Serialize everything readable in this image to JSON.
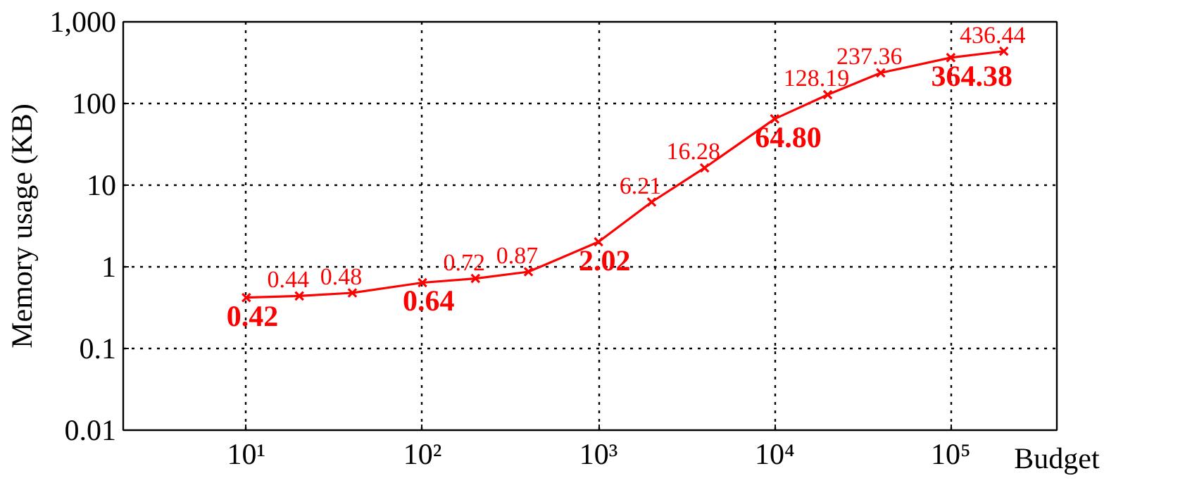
{
  "chart_data": {
    "type": "line",
    "xlabel": "Budget",
    "ylabel": "Memory usage (KB)",
    "log": "xy",
    "grid": true,
    "marker": "cross",
    "line_style": "solid",
    "xlim": [
      2,
      400000
    ],
    "ylim": [
      0.01,
      1000
    ],
    "xticks": [
      {
        "value": 10,
        "label": "10¹"
      },
      {
        "value": 100,
        "label": "10²"
      },
      {
        "value": 1000,
        "label": "10³"
      },
      {
        "value": 10000,
        "label": "10⁴"
      },
      {
        "value": 100000,
        "label": "10⁵"
      }
    ],
    "yticks": [
      0.01,
      0.1,
      1,
      10,
      100,
      {
        "value": 1000,
        "label": "1,000"
      }
    ],
    "x": [
      10,
      20,
      40,
      100,
      200,
      400,
      1000,
      2000,
      4000,
      10000,
      20000,
      40000,
      100000,
      200000
    ],
    "series": [
      {
        "color": "#ff0000",
        "values": [
          0.42,
          0.44,
          0.48,
          0.64,
          0.72,
          0.87,
          2.02,
          6.21,
          16.28,
          64.8,
          128.19,
          237.36,
          364.38,
          436.44
        ],
        "value_labels": [
          null,
          "0.44",
          "0.48",
          null,
          "0.72",
          "0.87",
          null,
          "6.21",
          "16.28",
          null,
          "128.19",
          "237.36",
          null,
          "436.44"
        ]
      }
    ],
    "annotations": [
      {
        "text": "0.42",
        "x": 10,
        "y": 0.42
      },
      {
        "text": "0.64",
        "x": 100,
        "y": 0.64
      },
      {
        "text": "2.02",
        "x": 1000,
        "y": 2.02
      },
      {
        "text": "64.80",
        "x": 10000,
        "y": 64.8
      },
      {
        "text": "364.38",
        "x": 100000,
        "y": 364.38
      }
    ]
  }
}
